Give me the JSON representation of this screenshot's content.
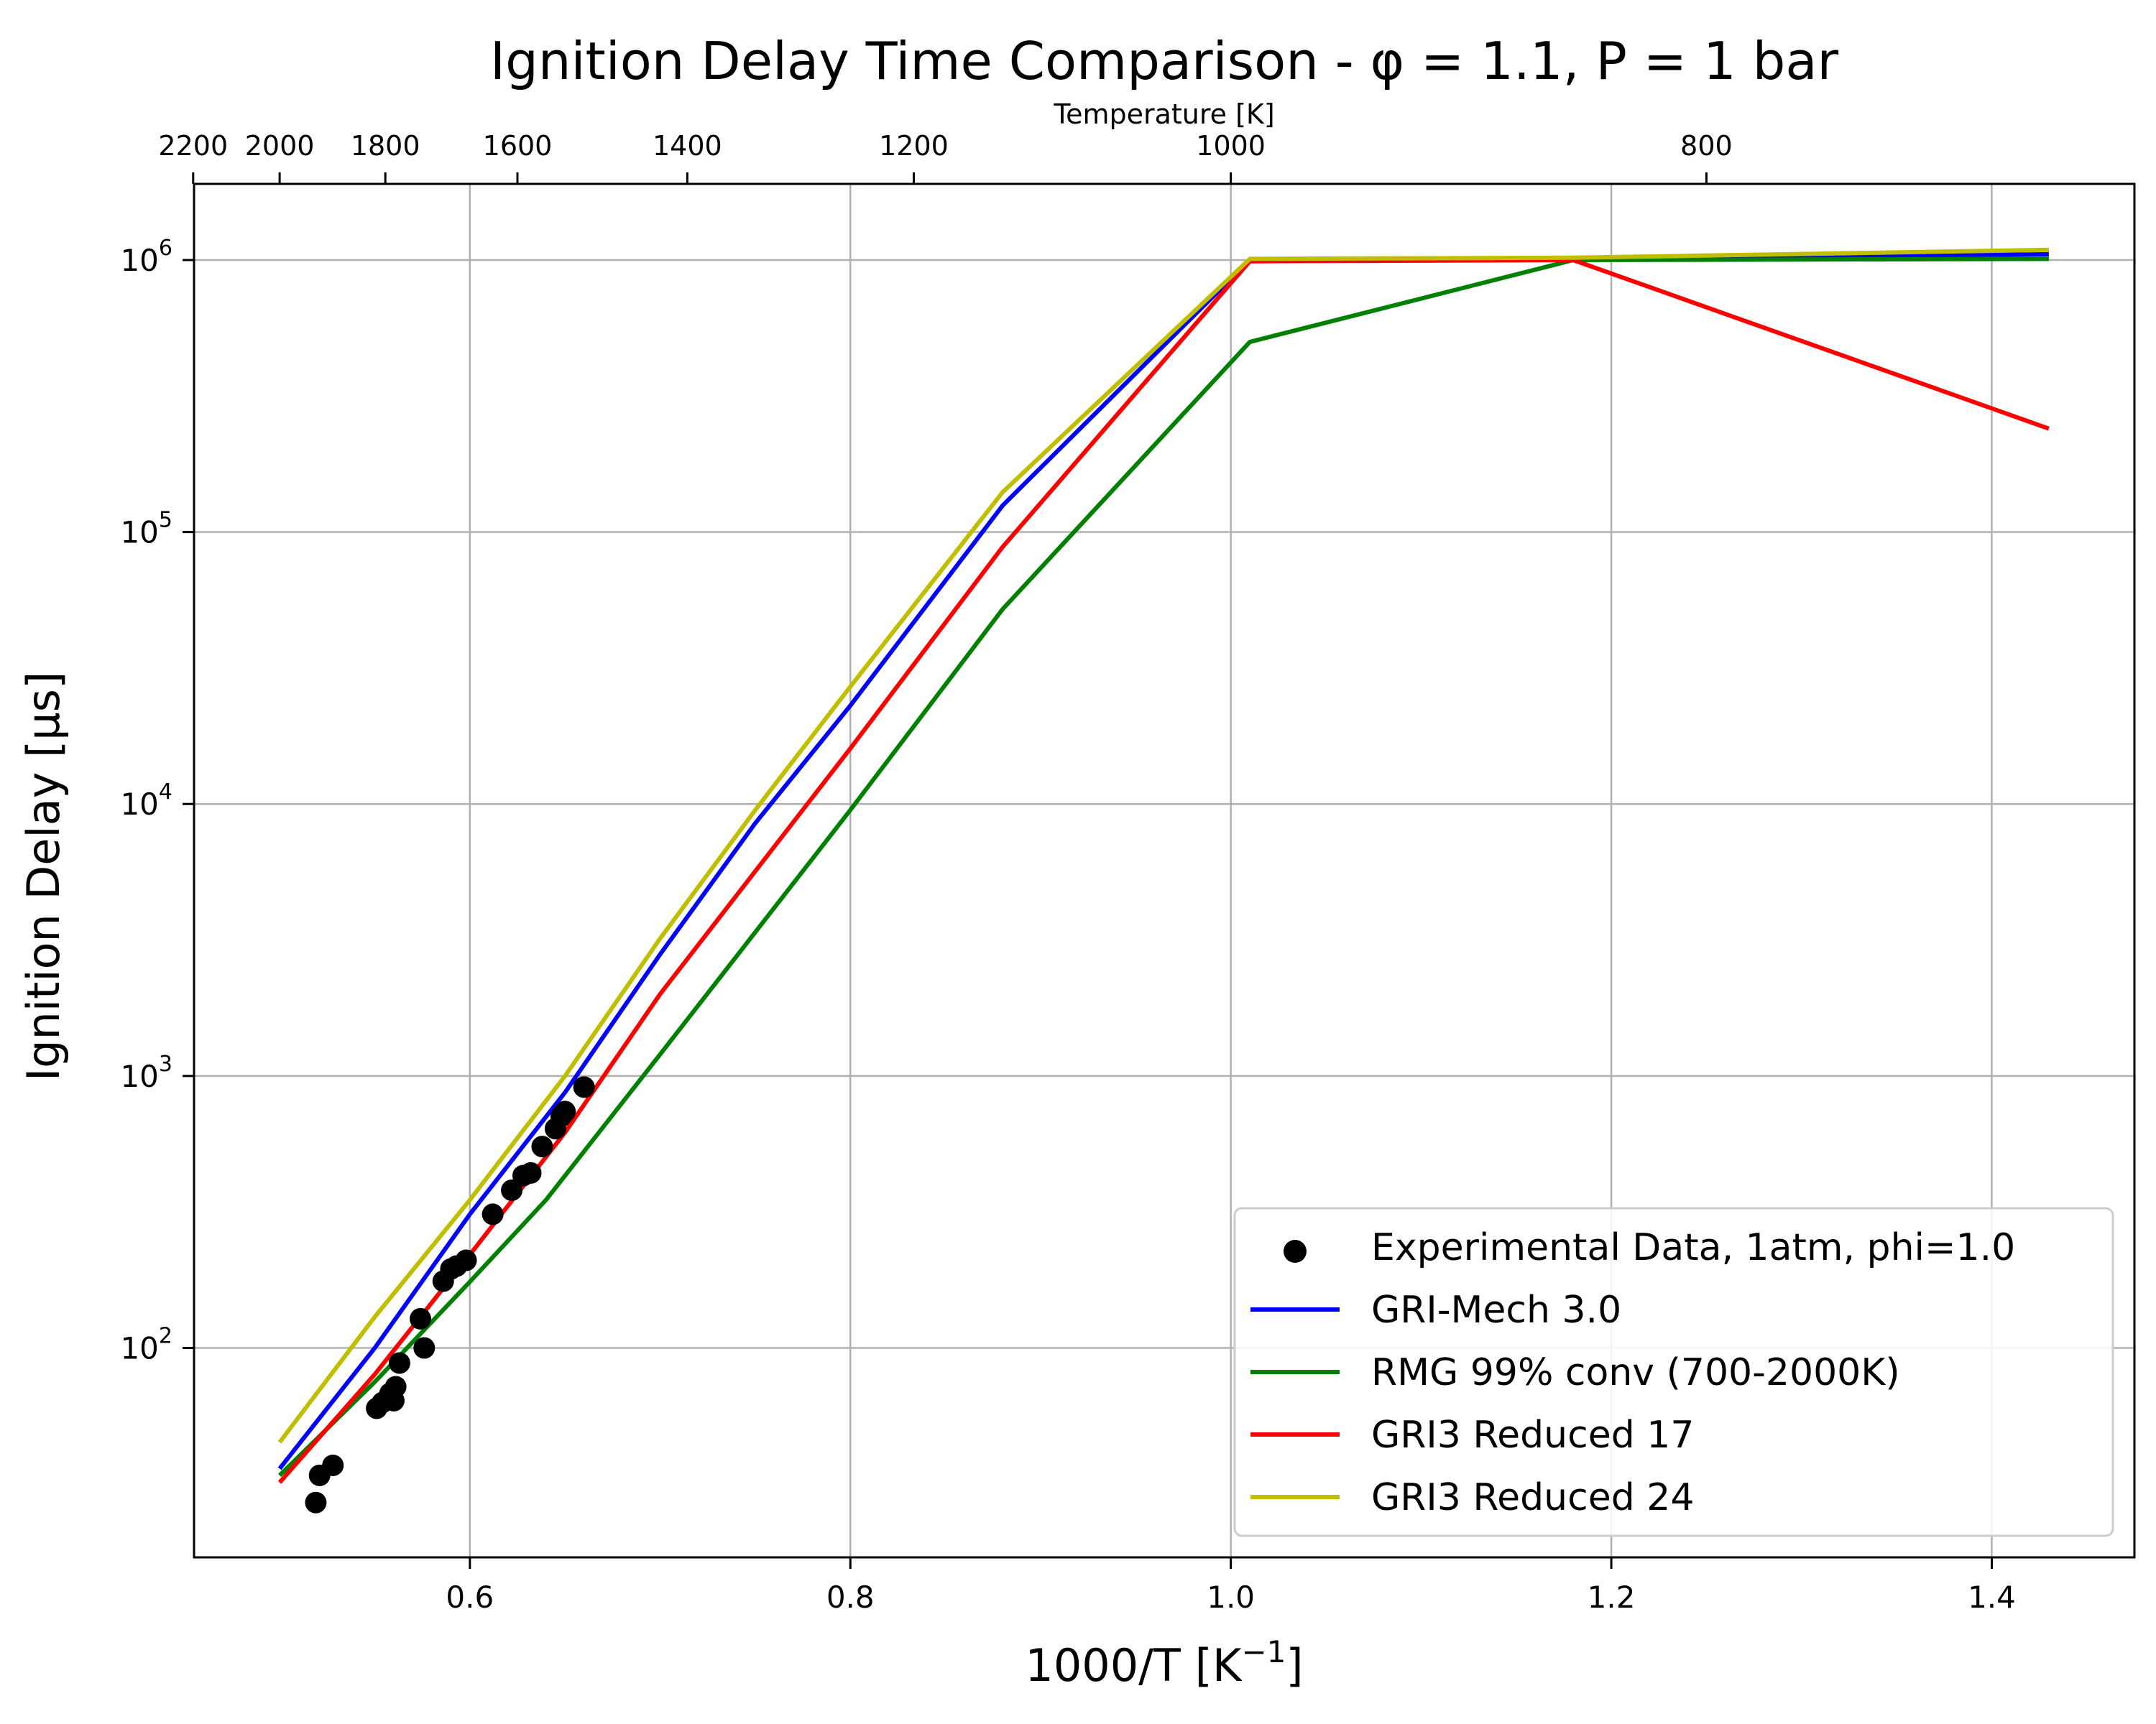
{
  "chart_data": {
    "type": "line",
    "title": "Ignition Delay Time Comparison - φ = 1.1, P = 1 bar",
    "xlabel": "1000/T [K",
    "xlabel_sup": "−1",
    "xlabel_end": "]",
    "ylabel": "Ignition Delay [µs]",
    "top_axis_label": "Temperature [K]",
    "xlim": [
      0.455,
      1.475
    ],
    "ylim_log10": [
      1.23,
      6.28
    ],
    "yscale": "log",
    "grid": true,
    "legend_position": "lower-right",
    "x_ticks": [
      {
        "value": 0.6,
        "label": "0.6"
      },
      {
        "value": 0.8,
        "label": "0.8"
      },
      {
        "value": 1.0,
        "label": "1.0"
      },
      {
        "value": 1.2,
        "label": "1.2"
      },
      {
        "value": 1.4,
        "label": "1.4"
      }
    ],
    "y_ticks": [
      {
        "exp": 2,
        "base": "10",
        "sup": "2"
      },
      {
        "exp": 3,
        "base": "10",
        "sup": "3"
      },
      {
        "exp": 4,
        "base": "10",
        "sup": "4"
      },
      {
        "exp": 5,
        "base": "10",
        "sup": "5"
      },
      {
        "exp": 6,
        "base": "10",
        "sup": "6"
      }
    ],
    "top_ticks": [
      {
        "temperature": 2200,
        "label": "2200"
      },
      {
        "temperature": 2000,
        "label": "2000"
      },
      {
        "temperature": 1800,
        "label": "1800"
      },
      {
        "temperature": 1600,
        "label": "1600"
      },
      {
        "temperature": 1400,
        "label": "1400"
      },
      {
        "temperature": 1200,
        "label": "1200"
      },
      {
        "temperature": 1000,
        "label": "1000"
      },
      {
        "temperature": 800,
        "label": "800"
      }
    ],
    "scatter": {
      "name": "Experimental Data, 1atm, phi=1.0",
      "color": "#000000",
      "points": [
        [
          0.519,
          27
        ],
        [
          0.521,
          34
        ],
        [
          0.528,
          37
        ],
        [
          0.551,
          60
        ],
        [
          0.554,
          63
        ],
        [
          0.558,
          68
        ],
        [
          0.56,
          64
        ],
        [
          0.561,
          72
        ],
        [
          0.563,
          88
        ],
        [
          0.574,
          128
        ],
        [
          0.576,
          100
        ],
        [
          0.586,
          176
        ],
        [
          0.59,
          195
        ],
        [
          0.593,
          200
        ],
        [
          0.598,
          210
        ],
        [
          0.612,
          310
        ],
        [
          0.622,
          380
        ],
        [
          0.628,
          430
        ],
        [
          0.632,
          440
        ],
        [
          0.638,
          550
        ],
        [
          0.645,
          640
        ],
        [
          0.648,
          710
        ],
        [
          0.65,
          740
        ],
        [
          0.66,
          910
        ]
      ]
    },
    "series": [
      {
        "name": "GRI-Mech 3.0",
        "color": "#0000ff",
        "points": [
          [
            0.5,
            36
          ],
          [
            0.55,
            100
          ],
          [
            0.6,
            310
          ],
          [
            0.65,
            870
          ],
          [
            0.7,
            2800
          ],
          [
            0.75,
            8500
          ],
          [
            0.8,
            23000
          ],
          [
            0.88,
            125000
          ],
          [
            1.01,
            1000000
          ],
          [
            1.18,
            1010000
          ],
          [
            1.43,
            1050000
          ]
        ]
      },
      {
        "name": "RMG 99% conv (700-2000K)",
        "color": "#008000",
        "points": [
          [
            0.5,
            34
          ],
          [
            0.55,
            75
          ],
          [
            0.6,
            175
          ],
          [
            0.64,
            350
          ],
          [
            0.7,
            1200
          ],
          [
            0.8,
            9500
          ],
          [
            0.88,
            52000
          ],
          [
            1.01,
            500000
          ],
          [
            1.18,
            1000000
          ],
          [
            1.43,
            1010000
          ]
        ]
      },
      {
        "name": "GRI3 Reduced 17",
        "color": "#ff0000",
        "points": [
          [
            0.5,
            32
          ],
          [
            0.55,
            80
          ],
          [
            0.6,
            220
          ],
          [
            0.65,
            620
          ],
          [
            0.7,
            2000
          ],
          [
            0.8,
            16000
          ],
          [
            0.88,
            88000
          ],
          [
            1.01,
            990000
          ],
          [
            1.18,
            1000000
          ],
          [
            1.43,
            240000
          ]
        ]
      },
      {
        "name": "GRI3 Reduced 24",
        "color": "#bfbf00",
        "points": [
          [
            0.5,
            45
          ],
          [
            0.55,
            130
          ],
          [
            0.6,
            350
          ],
          [
            0.65,
            1000
          ],
          [
            0.7,
            3200
          ],
          [
            0.75,
            9500
          ],
          [
            0.8,
            27000
          ],
          [
            0.88,
            140000
          ],
          [
            1.01,
            1010000
          ],
          [
            1.18,
            1020000
          ],
          [
            1.43,
            1090000
          ]
        ]
      }
    ]
  }
}
